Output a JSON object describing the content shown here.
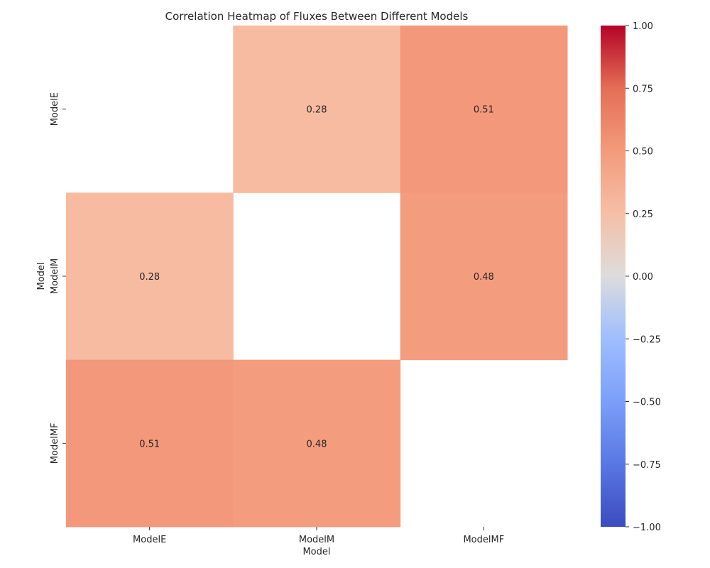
{
  "chart_data": {
    "type": "heatmap",
    "title": "Correlation Heatmap of Fluxes Between Different Models",
    "xlabel": "Model",
    "ylabel": "Model",
    "x_categories": [
      "ModelE",
      "ModelM",
      "ModelMF"
    ],
    "y_categories": [
      "ModelE",
      "ModelM",
      "ModelMF"
    ],
    "values": [
      [
        null,
        0.28,
        0.51
      ],
      [
        0.28,
        null,
        0.48
      ],
      [
        0.51,
        0.48,
        null
      ]
    ],
    "cell_labels": [
      [
        "",
        "0.28",
        "0.51"
      ],
      [
        "0.28",
        "",
        "0.48"
      ],
      [
        "0.51",
        "0.48",
        ""
      ]
    ],
    "colormap": "coolwarm",
    "vmin": -1.0,
    "vmax": 1.0,
    "colorbar_ticks": [
      1.0,
      0.75,
      0.5,
      0.25,
      0.0,
      -0.25,
      -0.5,
      -0.75,
      -1.0
    ],
    "colorbar_tick_labels": [
      "1.00",
      "0.75",
      "0.50",
      "0.25",
      "0.00",
      "−0.25",
      "−0.50",
      "−0.75",
      "−1.00"
    ],
    "colors": {
      "low": "#3b4cc0",
      "mid": "#dddcdc",
      "high": "#b40426"
    }
  }
}
